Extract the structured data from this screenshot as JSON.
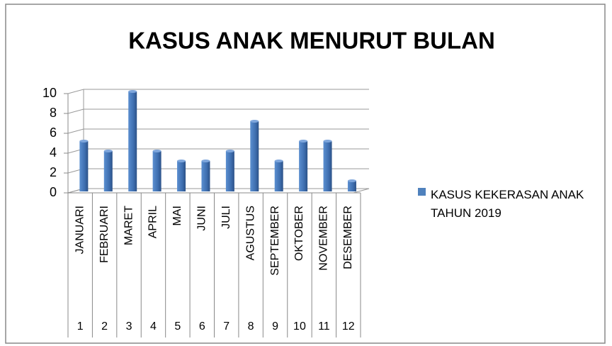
{
  "chart_data": {
    "type": "bar",
    "title": "KASUS ANAK MENURUT BULAN",
    "categories": [
      "JANUARI",
      "FEBRUARI",
      "MARET",
      "APRIL",
      "MAI",
      "JUNI",
      "JULI",
      "AGUSTUS",
      "SEPTEMBER",
      "OKTOBER",
      "NOVEMBER",
      "DESEMBER"
    ],
    "category_groups": [
      1,
      2,
      3,
      4,
      5,
      6,
      7,
      8,
      9,
      10,
      11,
      12
    ],
    "series": [
      {
        "name": "KASUS KEKERASAN ANAK TAHUN 2019",
        "color": "#4f81bd",
        "values": [
          5,
          4,
          10,
          4,
          3,
          3,
          4,
          7,
          3,
          5,
          5,
          1
        ]
      }
    ],
    "ylim": [
      0,
      10
    ],
    "yticks": [
      0,
      2,
      4,
      6,
      8,
      10
    ],
    "grid": true,
    "legend": "right"
  }
}
